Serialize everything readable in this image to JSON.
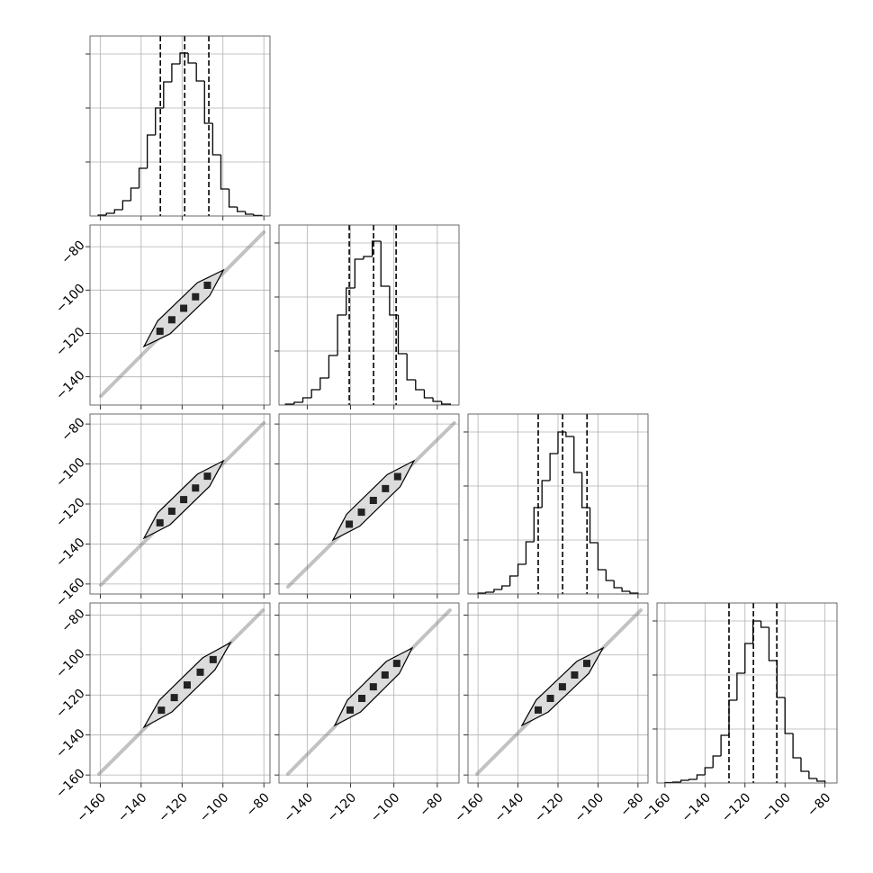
{
  "chart_data": {
    "type": "corner",
    "grid": true,
    "params": [
      {
        "xlim": [
          -165,
          -77
        ],
        "ticks": [
          {
            "value": -160,
            "label": "−160"
          },
          {
            "value": -140,
            "label": "−140"
          },
          {
            "value": -120,
            "label": "−120"
          },
          {
            "value": -100,
            "label": "−100"
          },
          {
            "value": -80,
            "label": "−80"
          }
        ]
      },
      {
        "xlim": [
          -153,
          -70
        ],
        "ticks": [
          {
            "value": -140,
            "label": "−140"
          },
          {
            "value": -120,
            "label": "−120"
          },
          {
            "value": -100,
            "label": "−100"
          },
          {
            "value": -80,
            "label": "−80"
          }
        ]
      },
      {
        "xlim": [
          -165,
          -75
        ],
        "ticks": [
          {
            "value": -160,
            "label": "−160"
          },
          {
            "value": -140,
            "label": "−140"
          },
          {
            "value": -120,
            "label": "−120"
          },
          {
            "value": -100,
            "label": "−100"
          },
          {
            "value": -80,
            "label": "−80"
          }
        ]
      },
      {
        "xlim": [
          -164,
          -74
        ],
        "ticks": [
          {
            "value": -160,
            "label": "−160"
          },
          {
            "value": -140,
            "label": "−140"
          },
          {
            "value": -120,
            "label": "−120"
          },
          {
            "value": -100,
            "label": "−100"
          },
          {
            "value": -80,
            "label": "−80"
          }
        ]
      }
    ],
    "histograms": [
      {
        "bins": [
          -161,
          -157,
          -153,
          -149,
          -145,
          -141,
          -137,
          -133,
          -129,
          -125,
          -121,
          -117,
          -113,
          -109,
          -105,
          -101,
          -97,
          -93,
          -89,
          -85,
          -81
        ],
        "counts": [
          17,
          50,
          117,
          283,
          517,
          883,
          1500,
          2000,
          2483,
          2817,
          3017,
          2833,
          2500,
          1717,
          1133,
          500,
          167,
          83,
          33,
          10
        ],
        "quantiles": [
          -130.6,
          -118.7,
          -106.9
        ],
        "ylim": [
          0,
          3333
        ],
        "yticks": [
          1000,
          2000,
          3000
        ]
      },
      {
        "bins": [
          -150,
          -146,
          -142,
          -138,
          -134,
          -130,
          -126,
          -122,
          -118,
          -114,
          -110,
          -106,
          -102,
          -98,
          -94,
          -90,
          -86,
          -82,
          -78,
          -74
        ],
        "counts": [
          17,
          50,
          133,
          283,
          500,
          917,
          1667,
          2167,
          2700,
          2750,
          3033,
          2200,
          1667,
          950,
          467,
          283,
          133,
          67,
          17
        ],
        "quantiles": [
          -120.6,
          -109.4,
          -99.0
        ],
        "ylim": [
          0,
          3333
        ],
        "yticks": [
          1000,
          2000,
          3000
        ]
      },
      {
        "bins": [
          -160,
          -156,
          -152,
          -148,
          -144,
          -140,
          -136,
          -132,
          -128,
          -124,
          -120,
          -116,
          -112,
          -108,
          -104,
          -100,
          -96,
          -92,
          -88,
          -84,
          -80
        ],
        "counts": [
          17,
          33,
          83,
          150,
          333,
          550,
          967,
          1600,
          2100,
          2600,
          3000,
          2917,
          2250,
          1600,
          950,
          450,
          250,
          117,
          50,
          17
        ],
        "quantiles": [
          -129.9,
          -117.7,
          -105.5
        ],
        "ylim": [
          0,
          3333
        ],
        "yticks": [
          1000,
          2000,
          3000
        ]
      },
      {
        "bins": [
          -160,
          -156,
          -152,
          -148,
          -144,
          -140,
          -136,
          -132,
          -128,
          -124,
          -120,
          -116,
          -112,
          -108,
          -104,
          -100,
          -96,
          -92,
          -88,
          -84,
          -80
        ],
        "counts": [
          8,
          17,
          50,
          67,
          150,
          283,
          500,
          883,
          1533,
          2033,
          2583,
          3000,
          2883,
          2267,
          1583,
          917,
          467,
          217,
          83,
          33
        ],
        "quantiles": [
          -128,
          -115.8,
          -104.1
        ],
        "ylim": [
          0,
          3333
        ],
        "yticks": [
          1000,
          2000,
          3000
        ]
      }
    ],
    "pairs": [
      {
        "tail_x": [
          -159.7,
          -80
        ],
        "tail_y": [
          -148.9,
          -73.3
        ],
        "contour_x": [
          -138.6,
          -125.9,
          -106.5,
          -99.8,
          -112.5,
          -131.9
        ],
        "contour_y": [
          -126,
          -120.2,
          -102.6,
          -90.8,
          -96.6,
          -114.2
        ],
        "markers_x": [
          -130.8,
          -125.0,
          -119.2,
          -113.4,
          -107.6
        ],
        "markers_y": [
          -119,
          -113.7,
          -108.4,
          -103.1,
          -97.8
        ]
      },
      {
        "tail_x": [
          -159.7,
          -80
        ],
        "tail_y": [
          -160.5,
          -79.5
        ],
        "contour_x": [
          -138.6,
          -125.9,
          -106.5,
          -99.8,
          -112.5,
          -131.9
        ],
        "contour_y": [
          -137.1,
          -130.4,
          -111.1,
          -98.4,
          -105.1,
          -124.4
        ],
        "markers_x": [
          -130.8,
          -125.0,
          -119.2,
          -113.4,
          -107.6
        ],
        "markers_y": [
          -129.4,
          -123.6,
          -117.8,
          -112.0,
          -106.1
        ]
      },
      {
        "tail_x": [
          -148.9,
          -72.2
        ],
        "tail_y": [
          -161.4,
          -79.5
        ],
        "contour_x": [
          -128.1,
          -115.8,
          -97.1,
          -90.8,
          -103.1,
          -121.8
        ],
        "contour_y": [
          -138,
          -131.1,
          -111.3,
          -98.4,
          -105.3,
          -125.1
        ],
        "markers_x": [
          -120.6,
          -115.0,
          -109.5,
          -103.9,
          -98.3
        ],
        "markers_y": [
          -130.1,
          -124.1,
          -118.2,
          -112.3,
          -106.3
        ]
      },
      {
        "tail_x": [
          -160.6,
          -80.4
        ],
        "tail_y": [
          -159.5,
          -77.6
        ],
        "contour_x": [
          -138.6,
          -125,
          -103.9,
          -96.3,
          -109.9,
          -131
        ],
        "contour_y": [
          -136.1,
          -128.5,
          -107.4,
          -93.8,
          -101.4,
          -122.5
        ],
        "markers_x": [
          -130.1,
          -123.8,
          -117.5,
          -111.1,
          -104.8
        ],
        "markers_y": [
          -127.6,
          -121.3,
          -115.0,
          -108.6,
          -102.3
        ]
      },
      {
        "tail_x": [
          -148.9,
          -74.2
        ],
        "tail_y": [
          -159.5,
          -77.6
        ],
        "contour_x": [
          -127.3,
          -115.4,
          -97.5,
          -91.6,
          -103.5,
          -121.4
        ],
        "contour_y": [
          -135.2,
          -128.5,
          -109.2,
          -96.5,
          -103.2,
          -122.5
        ],
        "markers_x": [
          -120.2,
          -114.8,
          -109.5,
          -104.1,
          -98.7
        ],
        "markers_y": [
          -127.5,
          -121.7,
          -115.9,
          -110.0,
          -104.2
        ]
      },
      {
        "tail_x": [
          -160.5,
          -78.6
        ],
        "tail_y": [
          -159.5,
          -77.6
        ],
        "contour_x": [
          -138,
          -124.9,
          -104.6,
          -97.5,
          -110.6,
          -130.9
        ],
        "contour_y": [
          -135.2,
          -128.5,
          -109.2,
          -96.5,
          -103.2,
          -122.5
        ],
        "markers_x": [
          -129.9,
          -123.8,
          -117.8,
          -111.7,
          -105.6
        ],
        "markers_y": [
          -127.5,
          -121.7,
          -115.9,
          -110.0,
          -104.2
        ]
      }
    ]
  }
}
